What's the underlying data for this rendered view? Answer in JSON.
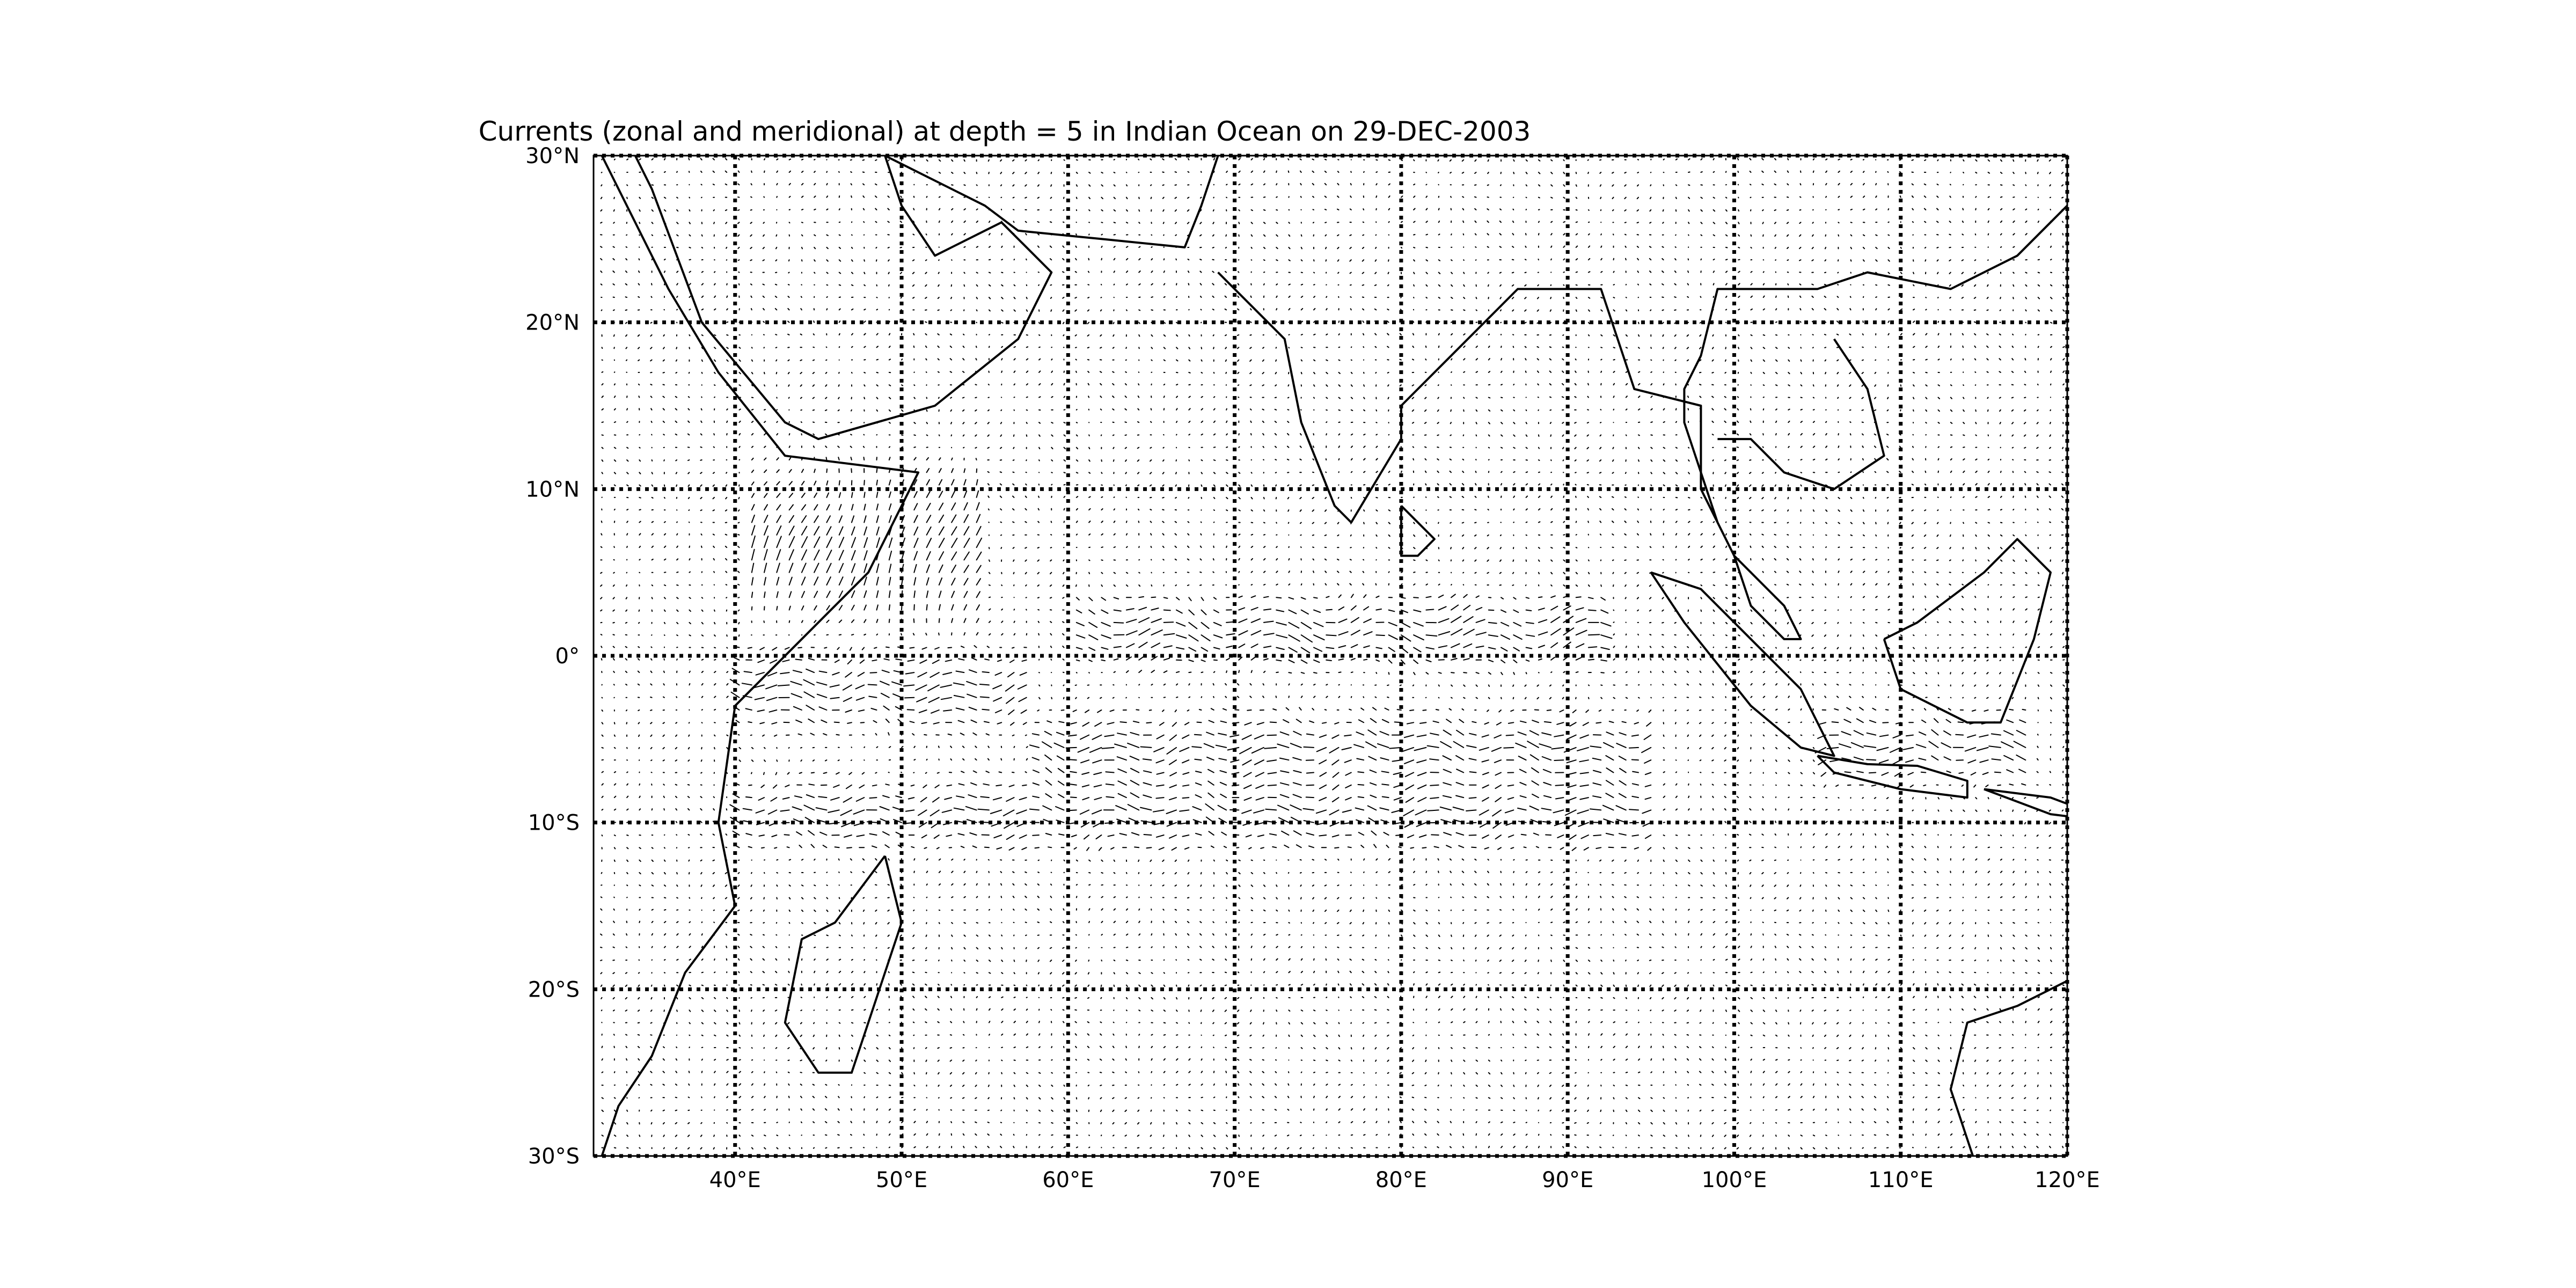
{
  "title": "Currents (zonal and meridional) at depth = 5 in Indian Ocean on 29-DEC-2003",
  "chart_data": {
    "type": "vector-field map",
    "title": "Currents (zonal and meridional) at depth = 5 in Indian Ocean on 29-DEC-2003",
    "xlim": [
      31.5,
      120
    ],
    "ylim": [
      -30,
      30
    ],
    "grid": "dotted",
    "x_ticks": [
      {
        "value": 40,
        "label": "40°E"
      },
      {
        "value": 50,
        "label": "50°E"
      },
      {
        "value": 60,
        "label": "60°E"
      },
      {
        "value": 70,
        "label": "70°E"
      },
      {
        "value": 80,
        "label": "80°E"
      },
      {
        "value": 90,
        "label": "90°E"
      },
      {
        "value": 100,
        "label": "100°E"
      },
      {
        "value": 110,
        "label": "110°E"
      },
      {
        "value": 120,
        "label": "120°E"
      }
    ],
    "y_ticks": [
      {
        "value": 30,
        "label": "30°N"
      },
      {
        "value": 20,
        "label": "20°N"
      },
      {
        "value": 10,
        "label": "10°N"
      },
      {
        "value": 0,
        "label": "0°"
      },
      {
        "value": -10,
        "label": "10°S"
      },
      {
        "value": -20,
        "label": "20°S"
      },
      {
        "value": -30,
        "label": "30°S"
      }
    ],
    "strong_current_bands": [
      {
        "lon": [
          60,
          92
        ],
        "lat": [
          -1,
          4
        ],
        "direction": "eastward"
      },
      {
        "lon": [
          40,
          58
        ],
        "lat": [
          -5,
          1
        ],
        "direction": "westward"
      },
      {
        "lon": [
          58,
          95
        ],
        "lat": [
          -8,
          -3
        ],
        "direction": "westward"
      },
      {
        "lon": [
          40,
          95
        ],
        "lat": [
          -12,
          -7
        ],
        "direction": "westward"
      },
      {
        "lon": [
          41,
          55
        ],
        "lat": [
          1,
          12
        ],
        "direction": "northward"
      },
      {
        "lon": [
          105,
          118
        ],
        "lat": [
          -8,
          -3
        ],
        "direction": "westward"
      }
    ],
    "coastlines": {
      "africa": [
        [
          32,
          30
        ],
        [
          36,
          22
        ],
        [
          39,
          17
        ],
        [
          43,
          12
        ],
        [
          51,
          11
        ],
        [
          48,
          5
        ],
        [
          44,
          1
        ],
        [
          40,
          -3
        ],
        [
          39,
          -10
        ],
        [
          40,
          -15
        ],
        [
          37,
          -19
        ],
        [
          35,
          -24
        ],
        [
          33,
          -27
        ],
        [
          32,
          -30
        ]
      ],
      "arabia": [
        [
          49,
          30
        ],
        [
          50,
          27
        ],
        [
          52,
          24
        ],
        [
          56,
          26
        ],
        [
          59,
          23
        ],
        [
          57,
          19
        ],
        [
          52,
          15
        ],
        [
          45,
          13
        ],
        [
          43,
          14
        ],
        [
          38,
          20
        ],
        [
          35,
          28
        ],
        [
          34,
          30
        ]
      ],
      "persia": [
        [
          49,
          30
        ],
        [
          55,
          27
        ],
        [
          57,
          25.5
        ],
        [
          62,
          25
        ],
        [
          67,
          24.5
        ],
        [
          68,
          27
        ],
        [
          69,
          30
        ]
      ],
      "india_burma": [
        [
          69,
          23
        ],
        [
          73,
          19
        ],
        [
          74,
          14
        ],
        [
          76,
          9
        ],
        [
          77,
          8
        ],
        [
          80,
          13
        ],
        [
          80,
          15
        ],
        [
          83,
          18
        ],
        [
          87,
          22
        ],
        [
          90,
          22
        ],
        [
          92,
          22
        ],
        [
          94,
          16
        ],
        [
          98,
          15
        ],
        [
          98,
          10
        ],
        [
          100,
          6
        ],
        [
          103,
          3
        ],
        [
          104,
          1
        ],
        [
          103,
          1
        ],
        [
          101,
          3
        ],
        [
          100,
          6
        ],
        [
          99,
          8
        ],
        [
          97,
          14
        ],
        [
          97,
          16
        ],
        [
          98,
          18
        ],
        [
          99,
          22
        ],
        [
          105,
          22
        ],
        [
          108,
          23
        ],
        [
          113,
          22
        ],
        [
          117,
          24
        ],
        [
          120,
          27
        ]
      ],
      "indochina": [
        [
          99,
          13
        ],
        [
          101,
          13
        ],
        [
          103,
          11
        ],
        [
          106,
          10
        ],
        [
          109,
          12
        ],
        [
          108,
          16
        ],
        [
          106,
          19
        ]
      ],
      "sri_lanka": [
        [
          80,
          9
        ],
        [
          82,
          7
        ],
        [
          81,
          6
        ],
        [
          80,
          6
        ],
        [
          80,
          9
        ]
      ],
      "madagascar": [
        [
          49,
          -12
        ],
        [
          50,
          -16
        ],
        [
          48,
          -22
        ],
        [
          47,
          -25
        ],
        [
          45,
          -25
        ],
        [
          43,
          -22
        ],
        [
          44,
          -17
        ],
        [
          46,
          -16
        ],
        [
          49,
          -12
        ]
      ],
      "sumatra": [
        [
          95,
          5
        ],
        [
          98,
          4
        ],
        [
          104,
          -2
        ],
        [
          106,
          -6
        ],
        [
          104,
          -5.5
        ],
        [
          101,
          -3
        ],
        [
          97,
          2
        ],
        [
          95,
          5
        ]
      ],
      "java": [
        [
          105,
          -6
        ],
        [
          108,
          -6.5
        ],
        [
          111,
          -6.6
        ],
        [
          114,
          -7.5
        ],
        [
          114,
          -8.5
        ],
        [
          110,
          -8
        ],
        [
          106,
          -7
        ],
        [
          105,
          -6
        ]
      ],
      "nusa": [
        [
          115,
          -8
        ],
        [
          119,
          -8.5
        ],
        [
          123,
          -10
        ],
        [
          119,
          -9.5
        ],
        [
          115,
          -8
        ]
      ],
      "borneo": [
        [
          109,
          1
        ],
        [
          110,
          -2
        ],
        [
          114,
          -4
        ],
        [
          116,
          -4
        ],
        [
          118,
          1
        ],
        [
          119,
          5
        ],
        [
          117,
          7
        ],
        [
          115,
          5
        ],
        [
          111,
          2
        ],
        [
          109,
          1
        ]
      ],
      "australia": [
        [
          120,
          -19.5
        ],
        [
          117,
          -21
        ],
        [
          114,
          -22
        ],
        [
          113,
          -26
        ],
        [
          114,
          -29
        ],
        [
          115,
          -32
        ]
      ]
    }
  }
}
